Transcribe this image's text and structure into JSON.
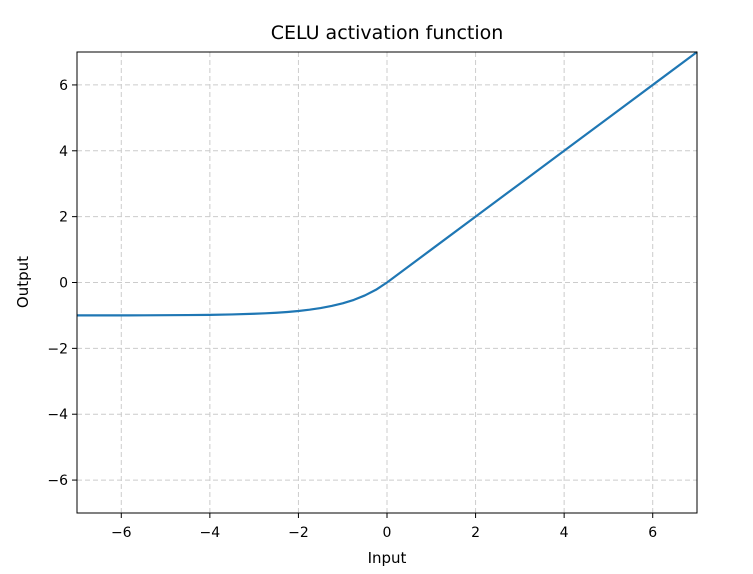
{
  "chart_data": {
    "type": "line",
    "title": "CELU activation function",
    "xlabel": "Input",
    "ylabel": "Output",
    "xlim": [
      -7,
      7
    ],
    "ylim": [
      -7,
      7
    ],
    "x_ticks": [
      -6,
      -4,
      -2,
      0,
      2,
      4,
      6
    ],
    "y_ticks": [
      -6,
      -4,
      -2,
      0,
      2,
      4,
      6
    ],
    "x_tick_labels": [
      "−6",
      "−4",
      "−2",
      "0",
      "2",
      "4",
      "6"
    ],
    "y_tick_labels": [
      "−6",
      "−4",
      "−2",
      "0",
      "2",
      "4",
      "6"
    ],
    "grid": true,
    "series": [
      {
        "color": "#1f77b4",
        "x": [
          -7,
          -6.5,
          -6,
          -5.5,
          -5,
          -4.5,
          -4,
          -3.5,
          -3,
          -2.75,
          -2.5,
          -2.25,
          -2,
          -1.75,
          -1.5,
          -1.25,
          -1,
          -0.75,
          -0.5,
          -0.25,
          0,
          1,
          2,
          3,
          4,
          5,
          6,
          7
        ],
        "y": [
          -0.999,
          -0.998,
          -0.998,
          -0.996,
          -0.993,
          -0.989,
          -0.982,
          -0.97,
          -0.95,
          -0.936,
          -0.918,
          -0.895,
          -0.865,
          -0.826,
          -0.777,
          -0.713,
          -0.632,
          -0.528,
          -0.393,
          -0.221,
          0,
          1,
          2,
          3,
          4,
          5,
          6,
          7
        ]
      }
    ]
  },
  "colors": {
    "line": "#1f77b4",
    "grid": "#cccccc",
    "axes": "#000000"
  }
}
